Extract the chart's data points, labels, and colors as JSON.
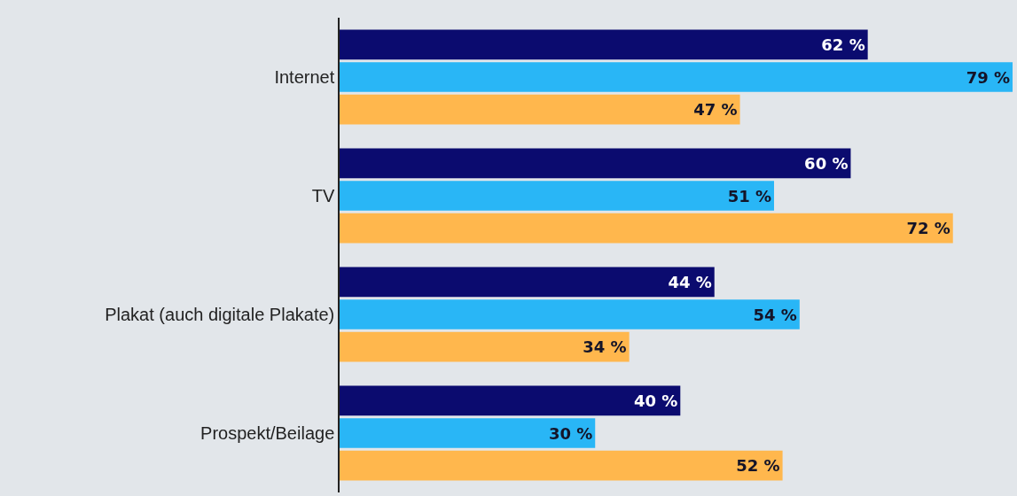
{
  "chart_data": {
    "type": "bar",
    "orientation": "horizontal",
    "categories": [
      "Internet",
      "TV",
      "Plakat (auch digitale Plakate)",
      "Prospekt/Beilage"
    ],
    "series": [
      {
        "color": "#0b0b6f",
        "values": [
          62,
          60,
          44,
          40
        ],
        "value_labels": [
          "62 %",
          "60 %",
          "44 %",
          "40 %"
        ]
      },
      {
        "color": "#29b6f6",
        "values": [
          79,
          51,
          54,
          30
        ],
        "value_labels": [
          "79 %",
          "51 %",
          "54 %",
          "30 %"
        ]
      },
      {
        "color": "#ffb74d",
        "values": [
          47,
          72,
          34,
          52
        ],
        "value_labels": [
          "47 %",
          "72 %",
          "34 %",
          "52 %"
        ]
      }
    ],
    "xlim": [
      0,
      79
    ],
    "tick_labels": "y"
  }
}
